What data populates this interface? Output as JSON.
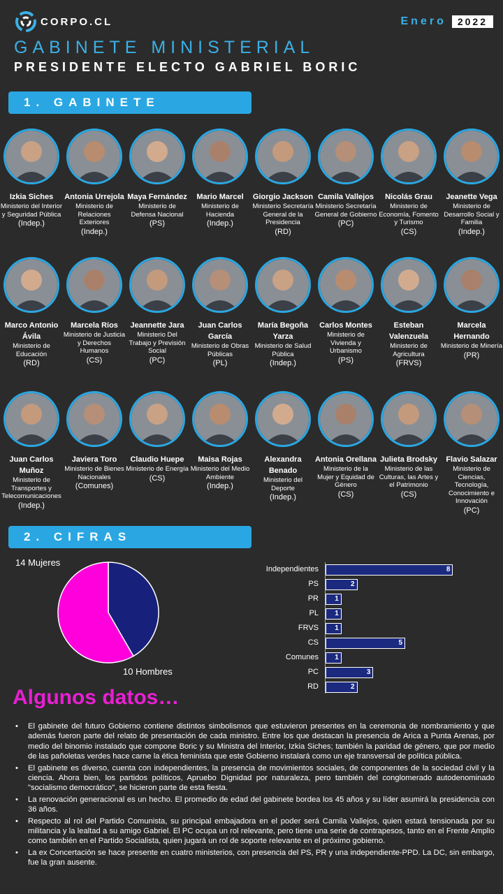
{
  "brand": "CORPO.CL",
  "date": {
    "month": "Enero",
    "year": "2022"
  },
  "title": "GABINETE MINISTERIAL",
  "subtitle": "PRESIDENTE ELECTO GABRIEL BORIC",
  "sections": {
    "gabinete": "1. GABINETE",
    "cifras": "2. CIFRAS"
  },
  "ministers": [
    {
      "name": "Izkia Siches",
      "ministry": "Ministerio del Interior y Seguridad Pública",
      "party": "(Indep.)"
    },
    {
      "name": "Antonia Urrejola",
      "ministry": "Ministerio de Relaciones Exteriores",
      "party": "(Indep.)"
    },
    {
      "name": "Maya Fernández",
      "ministry": "Ministerio de Defensa Nacional",
      "party": "(PS)"
    },
    {
      "name": "Mario Marcel",
      "ministry": "Ministerio de Hacienda",
      "party": "(Indep.)"
    },
    {
      "name": "Giorgio Jackson",
      "ministry": "Ministerio Secretaría General de la Presidencia",
      "party": "(RD)"
    },
    {
      "name": "Camila Vallejos",
      "ministry": "Ministerio Secretaría General de Gobierno",
      "party": "(PC)"
    },
    {
      "name": "Nicolás Grau",
      "ministry": "Ministerio de Economía, Fomento y Turismo",
      "party": "(CS)"
    },
    {
      "name": "Jeanette Vega",
      "ministry": "Ministerio de Desarrollo Social y Familia",
      "party": "(Indep.)"
    },
    {
      "name": "Marco Antonio Ávila",
      "ministry": "Ministerio de Educación",
      "party": "(RD)"
    },
    {
      "name": "Marcela Ríos",
      "ministry": "Ministerio de Justicia y Derechos Humanos",
      "party": "(CS)"
    },
    {
      "name": "Jeannette Jara",
      "ministry": "Ministerio Del Trabajo y Previsión Social",
      "party": "(PC)"
    },
    {
      "name": "Juan Carlos García",
      "ministry": "Ministerio de Obras Públicas",
      "party": "(PL)"
    },
    {
      "name": "María Begoña Yarza",
      "ministry": "Ministerio de Salud Pública",
      "party": "(Indep.)"
    },
    {
      "name": "Carlos Montes",
      "ministry": "Ministerio de Vivienda y Urbanismo",
      "party": "(PS)"
    },
    {
      "name": "Esteban Valenzuela",
      "ministry": "Ministerio de Agricultura",
      "party": "(FRVS)"
    },
    {
      "name": "Marcela Hernando",
      "ministry": "Ministerio de Minería",
      "party": "(PR)"
    },
    {
      "name": "Juan Carlos Muñoz",
      "ministry": "Ministerio de Transportes y Telecomunicaciones",
      "party": "(Indep.)"
    },
    {
      "name": "Javiera Toro",
      "ministry": "Ministerio de Bienes Nacionales",
      "party": "(Comunes)"
    },
    {
      "name": "Claudio Huepe",
      "ministry": "Ministerio de Energía",
      "party": "(CS)"
    },
    {
      "name": "Maisa Rojas",
      "ministry": "Ministerio del Medio Ambiente",
      "party": "(Indep.)"
    },
    {
      "name": "Alexandra Benado",
      "ministry": "Ministerio del Deporte",
      "party": "(Indep.)"
    },
    {
      "name": "Antonia Orellana",
      "ministry": "Ministerio de la Mujer y Equidad de Género",
      "party": "(CS)"
    },
    {
      "name": "Julieta Brodsky",
      "ministry": "Ministerio de las Culturas, las Artes y el Patrimonio",
      "party": "(CS)"
    },
    {
      "name": "Flavio Salazar",
      "ministry": "Ministerio de Ciencias, Tecnología, Conocimiento e Innovación",
      "party": "(PC)"
    }
  ],
  "chart_data": [
    {
      "type": "pie",
      "slices": [
        {
          "label": "14 Mujeres",
          "value": 14,
          "color": "#ff00dd"
        },
        {
          "label": "10 Hombres",
          "value": 10,
          "color": "#17207a"
        }
      ]
    },
    {
      "type": "bar",
      "orientation": "horizontal",
      "categories": [
        "Independientes",
        "PS",
        "PR",
        "PL",
        "FRVS",
        "CS",
        "Comunes",
        "PC",
        "RD"
      ],
      "values": [
        8,
        2,
        1,
        1,
        1,
        5,
        1,
        3,
        2
      ],
      "color": "#1b2a7e"
    }
  ],
  "datos": {
    "title": "Algunos datos…",
    "items": [
      "El gabinete del futuro Gobierno contiene distintos simbolismos que estuvieron presentes en la ceremonia de nombramiento y que además fueron parte del relato de presentación de cada ministro. Entre los que destacan la presencia de Arica a Punta Arenas, por medio del binomio instalado que compone Boric y su Ministra del Interior, Izkia Siches; también la paridad de género, que por medio de las pañoletas verdes hace carne la ética feminista que este Gobierno instalará como un eje transversal de política pública.",
      "El gabinete es diverso, cuenta con independientes, la presencia de movimientos sociales, de componentes de la sociedad civil y la ciencia. Ahora bien, los partidos políticos, Apruebo Dignidad por naturaleza, pero también del conglomerado autodenominado \"socialismo democrático\", se hicieron parte de esta fiesta.",
      "La renovación generacional es un hecho. El promedio de edad del gabinete bordea los 45 años y su líder asumirá la presidencia con 36 años.",
      "Respecto al rol del Partido Comunista, su principal embajadora en el poder será Camila Vallejos, quien estará tensionada por su militancia y la lealtad a su amigo Gabriel. El PC ocupa un rol relevante, pero tiene una serie de contrapesos, tanto en el Frente Amplio como también en el Partido Socialista, quien jugará un rol de soporte relevante en el próximo gobierno.",
      "La ex Concertación se hace presente en cuatro ministerios, con presencia del PS, PR y una independiente-PPD. La DC, sin embargo, fue la gran ausente."
    ]
  }
}
